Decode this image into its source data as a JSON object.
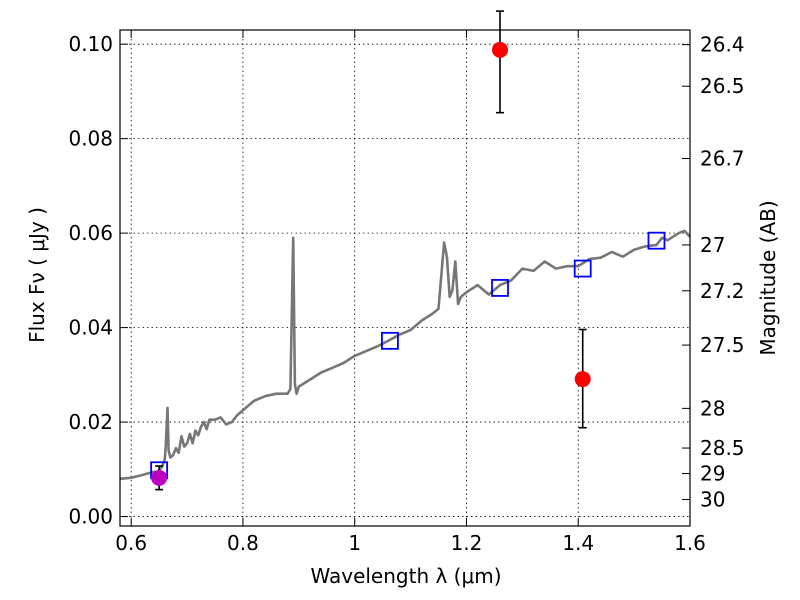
{
  "chart_data": {
    "type": "line",
    "xlabel": "Wavelength  λ (μm)",
    "ylabel": "Flux  Fν  ( μJy )",
    "y2label": "Magnitude (AB)",
    "xlim": [
      0.58,
      1.6
    ],
    "ylim": [
      -0.002,
      0.103
    ],
    "grid": true,
    "x_ticks": [
      {
        "value": 0.6,
        "label": "0.6"
      },
      {
        "value": 0.8,
        "label": "0.8"
      },
      {
        "value": 1.0,
        "label": "1"
      },
      {
        "value": 1.2,
        "label": "1.2"
      },
      {
        "value": 1.4,
        "label": "1.4"
      },
      {
        "value": 1.6,
        "label": "1.6"
      }
    ],
    "y_ticks": [
      {
        "value": 0.0,
        "label": "0.00"
      },
      {
        "value": 0.02,
        "label": "0.02"
      },
      {
        "value": 0.04,
        "label": "0.04"
      },
      {
        "value": 0.06,
        "label": "0.06"
      },
      {
        "value": 0.08,
        "label": "0.08"
      },
      {
        "value": 0.1,
        "label": "0.10"
      }
    ],
    "y2_ticks": [
      {
        "flux": 0.0999,
        "label": "26.4"
      },
      {
        "flux": 0.0911,
        "label": "26.5"
      },
      {
        "flux": 0.0758,
        "label": "26.7"
      },
      {
        "flux": 0.0575,
        "label": "27"
      },
      {
        "flux": 0.0478,
        "label": "27.2"
      },
      {
        "flux": 0.0363,
        "label": "27.5"
      },
      {
        "flux": 0.0229,
        "label": "28"
      },
      {
        "flux": 0.0145,
        "label": "28.5"
      },
      {
        "flux": 0.0091,
        "label": "29"
      },
      {
        "flux": 0.0036,
        "label": "30"
      }
    ],
    "colors": {
      "spectrum": "#777777",
      "model_box": "#0000ff",
      "detection": "#ff0000",
      "purple_point": "#c000c0",
      "errorbar": "#000000"
    },
    "series": [
      {
        "type": "line",
        "x": [
          0.58,
          0.6,
          0.62,
          0.64,
          0.645,
          0.65,
          0.655,
          0.66,
          0.662,
          0.665,
          0.667,
          0.67,
          0.675,
          0.68,
          0.685,
          0.69,
          0.695,
          0.7,
          0.705,
          0.71,
          0.715,
          0.72,
          0.725,
          0.73,
          0.735,
          0.74,
          0.75,
          0.76,
          0.77,
          0.78,
          0.79,
          0.8,
          0.82,
          0.84,
          0.86,
          0.88,
          0.885,
          0.89,
          0.893,
          0.896,
          0.9,
          0.92,
          0.94,
          0.96,
          0.98,
          1.0,
          1.02,
          1.04,
          1.06,
          1.08,
          1.1,
          1.12,
          1.14,
          1.15,
          1.16,
          1.165,
          1.17,
          1.175,
          1.18,
          1.185,
          1.19,
          1.2,
          1.22,
          1.24,
          1.26,
          1.28,
          1.3,
          1.32,
          1.34,
          1.36,
          1.38,
          1.4,
          1.42,
          1.44,
          1.46,
          1.48,
          1.5,
          1.52,
          1.54,
          1.55,
          1.56,
          1.58,
          1.59,
          1.6
        ],
        "y": [
          0.008,
          0.0082,
          0.0088,
          0.0095,
          0.0093,
          0.0098,
          0.0105,
          0.012,
          0.015,
          0.023,
          0.014,
          0.0125,
          0.013,
          0.0145,
          0.0135,
          0.017,
          0.0148,
          0.0155,
          0.0175,
          0.0155,
          0.0182,
          0.0172,
          0.019,
          0.02,
          0.0185,
          0.0205,
          0.0205,
          0.021,
          0.0195,
          0.02,
          0.0215,
          0.0225,
          0.0245,
          0.0255,
          0.026,
          0.026,
          0.027,
          0.059,
          0.028,
          0.026,
          0.0275,
          0.029,
          0.0305,
          0.0315,
          0.0325,
          0.034,
          0.035,
          0.036,
          0.0372,
          0.0385,
          0.0395,
          0.0415,
          0.043,
          0.044,
          0.058,
          0.055,
          0.0465,
          0.048,
          0.054,
          0.045,
          0.0465,
          0.0475,
          0.049,
          0.047,
          0.049,
          0.05,
          0.0525,
          0.052,
          0.054,
          0.0525,
          0.053,
          0.053,
          0.0545,
          0.0548,
          0.056,
          0.055,
          0.0565,
          0.0572,
          0.0575,
          0.059,
          0.0585,
          0.06,
          0.0605,
          0.0592
        ]
      },
      {
        "type": "scatter",
        "marker": "square",
        "x": [
          0.65,
          1.063,
          1.26,
          1.408,
          1.54
        ],
        "y": [
          0.0098,
          0.0372,
          0.0484,
          0.0525,
          0.0584
        ]
      },
      {
        "type": "scatter",
        "marker": "circle",
        "x": [
          1.26,
          1.408
        ],
        "y": [
          0.0988,
          0.0291
        ],
        "yerr_low": [
          0.0855,
          0.0188
        ],
        "yerr_high": [
          0.107,
          0.0396
        ]
      },
      {
        "type": "scatter",
        "marker": "circle",
        "x": [
          0.65
        ],
        "y": [
          0.0082
        ],
        "yerr_low": [
          0.0057
        ],
        "yerr_high": [
          0.0107
        ]
      }
    ]
  }
}
